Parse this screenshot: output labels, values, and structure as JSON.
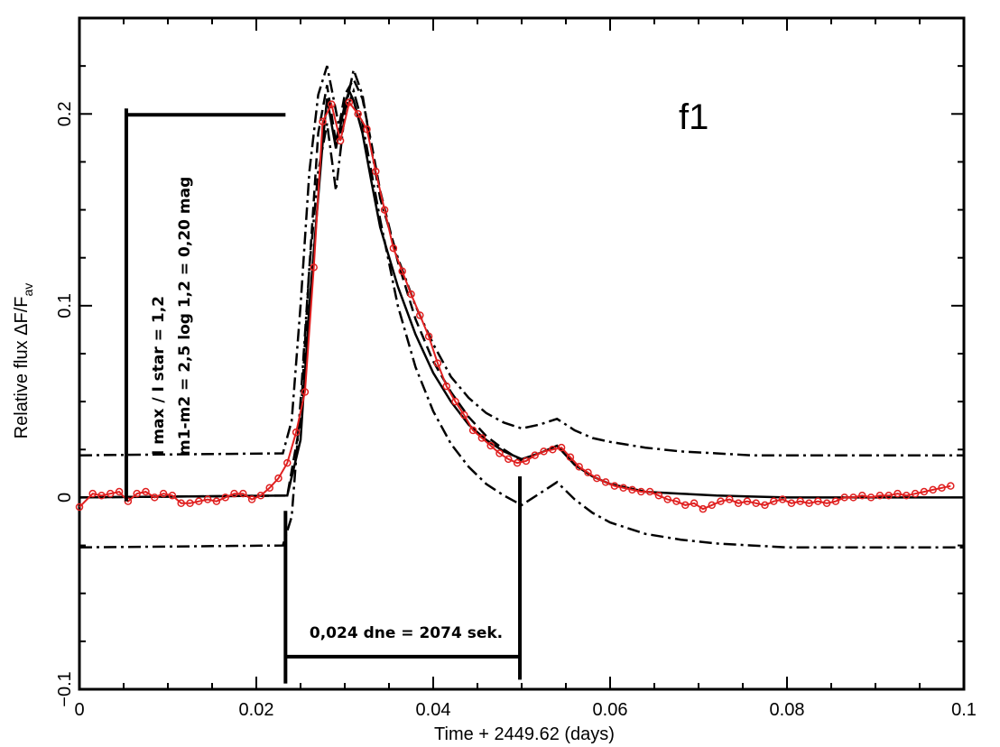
{
  "chart_data": {
    "type": "line",
    "xlabel": "Time + 2449.62 (days)",
    "ylabel_main": "Relative flux ΔF/F",
    "ylabel_sub": "av",
    "panel_label": "f1",
    "xlim": [
      0,
      0.1
    ],
    "ylim": [
      -0.1,
      0.25
    ],
    "x_ticks": [
      {
        "value": 0,
        "label": "0"
      },
      {
        "value": 0.02,
        "label": "0.02"
      },
      {
        "value": 0.04,
        "label": "0.04"
      },
      {
        "value": 0.06,
        "label": "0.06"
      },
      {
        "value": 0.08,
        "label": "0.08"
      },
      {
        "value": 0.1,
        "label": "0.1"
      }
    ],
    "y_ticks": [
      {
        "value": -0.1,
        "label": "−0.1"
      },
      {
        "value": 0,
        "label": "0"
      },
      {
        "value": 0.1,
        "label": "0.1"
      },
      {
        "value": 0.2,
        "label": "0.2"
      }
    ],
    "series": [
      {
        "style": "observed",
        "color": "#e02020",
        "marker": "open-circle",
        "x": [
          0.0,
          0.0015,
          0.0025,
          0.0035,
          0.0045,
          0.0055,
          0.0065,
          0.0075,
          0.0085,
          0.0095,
          0.0105,
          0.0115,
          0.0125,
          0.0135,
          0.0145,
          0.0155,
          0.0165,
          0.0175,
          0.0185,
          0.0195,
          0.0205,
          0.0215,
          0.0225,
          0.0235,
          0.0245,
          0.0255,
          0.0265,
          0.0275,
          0.0285,
          0.0295,
          0.0305,
          0.0315,
          0.0325,
          0.0335,
          0.0345,
          0.0355,
          0.0365,
          0.0375,
          0.0385,
          0.0395,
          0.0405,
          0.0415,
          0.0425,
          0.0435,
          0.0445,
          0.0455,
          0.0465,
          0.0475,
          0.0485,
          0.0495,
          0.0505,
          0.0515,
          0.0525,
          0.0535,
          0.0545,
          0.0555,
          0.0565,
          0.0575,
          0.0585,
          0.0595,
          0.0605,
          0.0615,
          0.0625,
          0.0635,
          0.0645,
          0.0655,
          0.0665,
          0.0675,
          0.0685,
          0.0695,
          0.0705,
          0.0715,
          0.0725,
          0.0735,
          0.0745,
          0.0755,
          0.0765,
          0.0775,
          0.0785,
          0.0795,
          0.0805,
          0.0815,
          0.0825,
          0.0835,
          0.0845,
          0.0855,
          0.0865,
          0.0875,
          0.0885,
          0.0895,
          0.0905,
          0.0915,
          0.0925,
          0.0935,
          0.0945,
          0.0955,
          0.0965,
          0.0975,
          0.0985
        ],
        "y": [
          -0.005,
          0.002,
          0.001,
          0.002,
          0.003,
          -0.002,
          0.002,
          0.003,
          0.0,
          0.002,
          0.001,
          -0.003,
          -0.003,
          -0.002,
          -0.001,
          -0.002,
          0.0,
          0.002,
          0.002,
          -0.001,
          0.001,
          0.005,
          0.01,
          0.018,
          0.034,
          0.055,
          0.12,
          0.196,
          0.205,
          0.186,
          0.206,
          0.2,
          0.192,
          0.17,
          0.15,
          0.13,
          0.118,
          0.106,
          0.095,
          0.084,
          0.07,
          0.058,
          0.05,
          0.043,
          0.035,
          0.031,
          0.027,
          0.023,
          0.02,
          0.018,
          0.019,
          0.022,
          0.024,
          0.025,
          0.026,
          0.021,
          0.016,
          0.013,
          0.01,
          0.008,
          0.006,
          0.005,
          0.004,
          0.003,
          0.003,
          0.001,
          -0.001,
          -0.002,
          -0.004,
          -0.003,
          -0.006,
          -0.004,
          -0.002,
          -0.001,
          -0.003,
          -0.002,
          -0.003,
          -0.004,
          -0.002,
          -0.001,
          -0.003,
          -0.002,
          -0.003,
          -0.002,
          -0.003,
          -0.002,
          0.0,
          0.0,
          0.001,
          0.0,
          0.001,
          0.001,
          0.002,
          0.001,
          0.002,
          0.003,
          0.004,
          0.005,
          0.006
        ]
      },
      {
        "style": "model",
        "color": "#000000",
        "dash": "",
        "x": [
          0.0,
          0.0235,
          0.025,
          0.026,
          0.0275,
          0.028,
          0.029,
          0.03,
          0.0305,
          0.031,
          0.032,
          0.033,
          0.034,
          0.036,
          0.038,
          0.04,
          0.042,
          0.044,
          0.046,
          0.048,
          0.05,
          0.052,
          0.054,
          0.056,
          0.058,
          0.06,
          0.064,
          0.068,
          0.072,
          0.076,
          0.08,
          0.09,
          0.1
        ],
        "y": [
          0.0,
          0.001,
          0.03,
          0.1,
          0.185,
          0.208,
          0.182,
          0.205,
          0.212,
          0.207,
          0.19,
          0.165,
          0.141,
          0.11,
          0.085,
          0.065,
          0.05,
          0.038,
          0.03,
          0.024,
          0.02,
          0.023,
          0.027,
          0.017,
          0.011,
          0.007,
          0.003,
          0.002,
          0.001,
          0.0005,
          0.0,
          0.0,
          0.0
        ]
      },
      {
        "style": "model-dashed",
        "color": "#000000",
        "dash": "12,6",
        "x": [
          0.0,
          0.0235,
          0.025,
          0.026,
          0.027,
          0.028,
          0.029,
          0.03,
          0.031,
          0.032,
          0.033,
          0.034,
          0.036,
          0.038,
          0.04,
          0.042,
          0.044,
          0.046,
          0.048,
          0.05
        ],
        "y": [
          0.0,
          0.001,
          0.04,
          0.12,
          0.19,
          0.215,
          0.185,
          0.21,
          0.218,
          0.208,
          0.185,
          0.16,
          0.123,
          0.093,
          0.071,
          0.055,
          0.042,
          0.032,
          0.025,
          0.019
        ]
      },
      {
        "style": "envelope-upper",
        "color": "#000000",
        "dash": "14,5,3,5",
        "x": [
          0.0,
          0.023,
          0.024,
          0.025,
          0.026,
          0.027,
          0.028,
          0.0295,
          0.031,
          0.032,
          0.033,
          0.034,
          0.036,
          0.038,
          0.04,
          0.042,
          0.044,
          0.046,
          0.048,
          0.05,
          0.052,
          0.054,
          0.056,
          0.058,
          0.06,
          0.064,
          0.068,
          0.072,
          0.076,
          0.08,
          0.09,
          0.1
        ],
        "y": [
          0.022,
          0.023,
          0.04,
          0.1,
          0.17,
          0.21,
          0.225,
          0.19,
          0.223,
          0.21,
          0.182,
          0.156,
          0.125,
          0.1,
          0.08,
          0.063,
          0.052,
          0.044,
          0.039,
          0.036,
          0.038,
          0.041,
          0.035,
          0.031,
          0.029,
          0.026,
          0.024,
          0.023,
          0.022,
          0.022,
          0.022,
          0.022
        ]
      },
      {
        "style": "envelope-lower",
        "color": "#000000",
        "dash": "14,5,3,5",
        "x": [
          0.0,
          0.023,
          0.024,
          0.025,
          0.026,
          0.027,
          0.028,
          0.029,
          0.03,
          0.031,
          0.032,
          0.033,
          0.034,
          0.036,
          0.038,
          0.04,
          0.042,
          0.044,
          0.046,
          0.048,
          0.05,
          0.052,
          0.054,
          0.056,
          0.058,
          0.06,
          0.064,
          0.068,
          0.072,
          0.076,
          0.08,
          0.09,
          0.1
        ],
        "y": [
          -0.026,
          -0.025,
          -0.01,
          0.05,
          0.12,
          0.17,
          0.195,
          0.16,
          0.2,
          0.212,
          0.195,
          0.17,
          0.145,
          0.1,
          0.068,
          0.045,
          0.028,
          0.016,
          0.007,
          0.001,
          -0.004,
          0.002,
          0.008,
          -0.001,
          -0.008,
          -0.013,
          -0.019,
          -0.022,
          -0.024,
          -0.025,
          -0.026,
          -0.026,
          -0.026
        ]
      }
    ],
    "annotations": {
      "flux_ratio_line1": "I max / I star = 1,2",
      "flux_ratio_line2": "m1-m2 = 2,5 log 1,2 = 0,20 mag",
      "duration_label": "0,024 dne = 2074 sek.",
      "amplitude_bracket": {
        "x_left": 0.0053,
        "y_bottom": -0.002,
        "y_top": 0.2,
        "x_right": 0.0233
      },
      "duration_bracket": {
        "x_left": 0.0233,
        "x_right": 0.0498,
        "y_level": -0.083,
        "left_y_top": -0.007,
        "left_y_bottom": -0.097,
        "right_y_top": 0.011,
        "right_y_bottom": -0.095
      }
    },
    "grid": false,
    "legend": "none"
  }
}
